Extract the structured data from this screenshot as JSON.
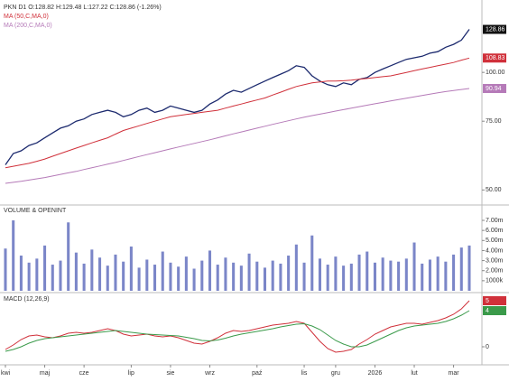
{
  "chart_data": [
    {
      "type": "line",
      "title": "PKN D1 O:128.82 H:129.48 L:127.22 C:128.86 (-1.26%)",
      "log_scale": true,
      "ylim": [
        46.5,
        150
      ],
      "yticks": [
        {
          "value": 50,
          "label": "50.00"
        },
        {
          "value": 75,
          "label": "75.00"
        },
        {
          "value": 100,
          "label": "100.00"
        }
      ],
      "series": [
        {
          "name": "PKN D1",
          "color": "#1c2a6e",
          "last_value_label": "128.86",
          "values": [
            58,
            62,
            63,
            65,
            66,
            68,
            70,
            72,
            73,
            75,
            76,
            78,
            79,
            80,
            79,
            77,
            78,
            80,
            81,
            79,
            80,
            82,
            81,
            80,
            79,
            80,
            83,
            85,
            88,
            90,
            89,
            91,
            93,
            95,
            97,
            99,
            101,
            104,
            103,
            98,
            95,
            93,
            92,
            94,
            93,
            96,
            97,
            100,
            102,
            104,
            106,
            108,
            109,
            110,
            112,
            113,
            116,
            118,
            121,
            128.86
          ]
        },
        {
          "name": "MA (50,C,MA,0)",
          "color": "#d0303a",
          "last_value_label": "108.83",
          "values": [
            57,
            57.5,
            58,
            58.5,
            59.2,
            60,
            61,
            62,
            63,
            64,
            65,
            66,
            67,
            68,
            69.5,
            71,
            72,
            73,
            74,
            75,
            76,
            77,
            77.5,
            78,
            78.5,
            79,
            79.5,
            80,
            81,
            82,
            83,
            84,
            85,
            86,
            87.5,
            89,
            90.5,
            92,
            93,
            94,
            94.5,
            95,
            95,
            95.2,
            95.5,
            96,
            96.5,
            97,
            97.5,
            98,
            99,
            100,
            101,
            102,
            103,
            104,
            105,
            106,
            107.5,
            108.83
          ]
        },
        {
          "name": "MA (200,C,MA,0)",
          "color": "#b57ab8",
          "last_value_label": "90.94",
          "values": [
            52,
            52.3,
            52.6,
            53,
            53.4,
            53.8,
            54.3,
            54.8,
            55.3,
            55.8,
            56.4,
            57,
            57.6,
            58.2,
            58.8,
            59.5,
            60.2,
            60.9,
            61.6,
            62.3,
            63,
            63.7,
            64.4,
            65.1,
            65.8,
            66.5,
            67.2,
            68,
            68.8,
            69.6,
            70.4,
            71.2,
            72,
            72.8,
            73.6,
            74.4,
            75.2,
            76,
            76.8,
            77.5,
            78.2,
            78.9,
            79.6,
            80.3,
            81,
            81.7,
            82.4,
            83.1,
            83.8,
            84.5,
            85.2,
            85.9,
            86.6,
            87.3,
            88,
            88.7,
            89.3,
            89.9,
            90.4,
            90.94
          ]
        }
      ]
    },
    {
      "type": "bar",
      "title": "VOLUME & OPENINT",
      "color": "#7b86c8",
      "ylim": [
        0,
        8080000
      ],
      "yticks": [
        {
          "value": 1000000,
          "label": "1000k"
        },
        {
          "value": 2000000,
          "label": "2.00m"
        },
        {
          "value": 3000000,
          "label": "3.00m"
        },
        {
          "value": 4000000,
          "label": "4.00m"
        },
        {
          "value": 5000000,
          "label": "5.00m"
        },
        {
          "value": 6000000,
          "label": "6.00m"
        },
        {
          "value": 7000000,
          "label": "7.00m"
        }
      ],
      "values": [
        4200000,
        7000000,
        3500000,
        2800000,
        3200000,
        4500000,
        2600000,
        3000000,
        6800000,
        3800000,
        2700000,
        4100000,
        3300000,
        2500000,
        3600000,
        2900000,
        4400000,
        2300000,
        3100000,
        2600000,
        3900000,
        2800000,
        2400000,
        3400000,
        2200000,
        3000000,
        4000000,
        2600000,
        3300000,
        2800000,
        2500000,
        3700000,
        2900000,
        2300000,
        3000000,
        2700000,
        3500000,
        4600000,
        2800000,
        5500000,
        3200000,
        2600000,
        3400000,
        2500000,
        2700000,
        3600000,
        3900000,
        2800000,
        3300000,
        3000000,
        2900000,
        3200000,
        4800000,
        2700000,
        3100000,
        3400000,
        2900000,
        3600000,
        4300000,
        4500000
      ]
    },
    {
      "type": "line",
      "title": "MACD (12,26,9)",
      "categories": [
        "kwi",
        null,
        null,
        null,
        null,
        "maj",
        null,
        null,
        null,
        null,
        "cze",
        null,
        null,
        null,
        null,
        null,
        "lip",
        null,
        null,
        null,
        null,
        "sie",
        null,
        null,
        null,
        null,
        "wrz",
        null,
        null,
        null,
        null,
        null,
        "paź",
        null,
        null,
        null,
        null,
        null,
        "lis",
        null,
        null,
        null,
        "gru",
        null,
        null,
        null,
        null,
        "2026",
        null,
        null,
        null,
        null,
        "lut",
        null,
        null,
        null,
        null,
        "mar",
        null,
        null
      ],
      "ylim": [
        -1.8,
        5.8
      ],
      "yticks": [
        0
      ],
      "series": [
        {
          "name": "MACD",
          "color": "#d0303a",
          "last_value_label": "5",
          "values": [
            -0.3,
            0.2,
            0.8,
            1.2,
            1.3,
            1.1,
            1.0,
            1.2,
            1.5,
            1.6,
            1.5,
            1.6,
            1.8,
            2.0,
            1.8,
            1.4,
            1.2,
            1.3,
            1.4,
            1.2,
            1.1,
            1.2,
            1.0,
            0.7,
            0.4,
            0.3,
            0.6,
            1.0,
            1.5,
            1.8,
            1.7,
            1.8,
            2.0,
            2.2,
            2.4,
            2.5,
            2.6,
            2.8,
            2.6,
            1.6,
            0.6,
            -0.2,
            -0.6,
            -0.5,
            -0.3,
            0.3,
            0.8,
            1.4,
            1.8,
            2.2,
            2.4,
            2.6,
            2.6,
            2.5,
            2.7,
            2.9,
            3.2,
            3.6,
            4.2,
            5.1
          ]
        },
        {
          "name": "Signal",
          "color": "#3a9a4a",
          "last_value_label": "4",
          "values": [
            -0.5,
            -0.3,
            0.0,
            0.4,
            0.7,
            0.9,
            1.0,
            1.1,
            1.2,
            1.3,
            1.4,
            1.5,
            1.6,
            1.7,
            1.8,
            1.7,
            1.6,
            1.5,
            1.4,
            1.35,
            1.3,
            1.25,
            1.2,
            1.05,
            0.9,
            0.7,
            0.65,
            0.75,
            0.95,
            1.2,
            1.4,
            1.55,
            1.7,
            1.85,
            2.0,
            2.2,
            2.35,
            2.5,
            2.55,
            2.3,
            1.9,
            1.3,
            0.7,
            0.3,
            0.0,
            0.0,
            0.2,
            0.6,
            1.0,
            1.4,
            1.8,
            2.1,
            2.3,
            2.4,
            2.5,
            2.6,
            2.8,
            3.1,
            3.5,
            4.0
          ]
        }
      ]
    }
  ]
}
